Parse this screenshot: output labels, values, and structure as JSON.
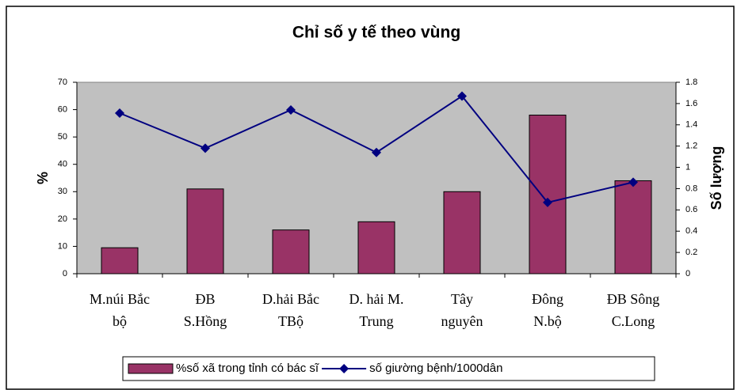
{
  "chart_data": {
    "type": "bar-line",
    "title": "Chỉ số y tế theo vùng",
    "y_label": "%",
    "y2_label": "Số lượng",
    "categories": [
      [
        "M.núi Bắc",
        "bộ"
      ],
      [
        "ĐB",
        "S.Hồng"
      ],
      [
        "D.hải Bắc",
        "TBộ"
      ],
      [
        "D. hải M.",
        "Trung"
      ],
      [
        "Tây",
        "nguyên"
      ],
      [
        "Đông",
        "N.bộ"
      ],
      [
        "ĐB Sông",
        "C.Long"
      ]
    ],
    "series": [
      {
        "name": "%số xã trong tỉnh có bác sĩ",
        "type": "bar",
        "color": "#993366",
        "values": [
          9.5,
          31,
          16,
          19,
          30,
          58,
          34
        ]
      },
      {
        "name": "số giường bệnh/1000dân",
        "type": "line",
        "axis": "y2",
        "color": "#000080",
        "values": [
          1.51,
          1.18,
          1.54,
          1.14,
          1.67,
          0.67,
          0.86
        ]
      }
    ],
    "ylim": [
      0,
      70
    ],
    "yticks": [
      0,
      10,
      20,
      30,
      40,
      50,
      60,
      70
    ],
    "y2lim": [
      0,
      1.8
    ],
    "y2ticks": [
      0,
      0.2,
      0.4,
      0.6,
      0.8,
      1,
      1.2,
      1.4,
      1.6,
      1.8
    ],
    "plot_background": "#c0c0c0",
    "legend": "bottom"
  }
}
